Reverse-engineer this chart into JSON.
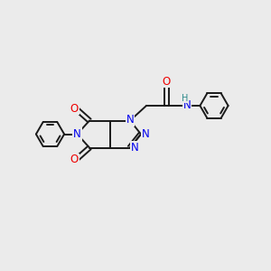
{
  "background_color": "#ebebeb",
  "bond_color": "#1a1a1a",
  "bond_width": 1.4,
  "atom_colors": {
    "N": "#0000ee",
    "O": "#ee0000",
    "C": "#1a1a1a",
    "H": "#2e8b8b"
  },
  "font_size_atom": 8.5
}
